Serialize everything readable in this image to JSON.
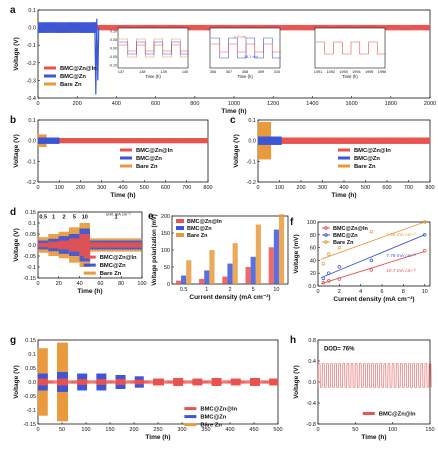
{
  "colors": {
    "bmc_in": "#e8524f",
    "bmc_zn": "#3b56d9",
    "bare": "#e99a3c",
    "axis": "#111111"
  },
  "chart_data": [
    {
      "id": "a",
      "type": "line",
      "panel_label": "a",
      "xlabel": "Time (h)",
      "ylabel": "Voltage (V)",
      "xlim": [
        0,
        2000
      ],
      "ylim": [
        -0.4,
        0.1
      ],
      "xticks": [
        0,
        200,
        400,
        600,
        800,
        1000,
        1200,
        1400,
        1600,
        1800,
        2000
      ],
      "yticks": [
        -0.4,
        -0.3,
        -0.2,
        -0.1,
        0.0,
        0.1
      ],
      "legend": [
        "BMC@Zn@In",
        "BMC@Zn",
        "Bare Zn"
      ],
      "series": [
        {
          "name": "BMC@Zn@In",
          "x_range": [
            0,
            2000
          ],
          "amplitude": 0.015
        },
        {
          "name": "BMC@Zn",
          "x_range": [
            0,
            300
          ],
          "amplitude": 0.03,
          "short_at": 300,
          "spike_min": -0.38
        },
        {
          "name": "Bare Zn",
          "x_range": [
            0,
            300
          ],
          "amplitude": 0.025
        }
      ],
      "insets": [
        {
          "xticks": [
            "137",
            "138",
            "139",
            "140"
          ],
          "yticks": [
            "0.10",
            "0.05",
            "0.00",
            "-0.05",
            "-0.10"
          ],
          "xlabel": "Time (h)"
        },
        {
          "xticks": [
            "306",
            "307",
            "308",
            "309",
            "310"
          ],
          "xlabel": "Time (h)",
          "annotations": [
            "< 9 mV",
            "18.1 mV"
          ]
        },
        {
          "xticks": [
            "1091",
            "1092",
            "1993",
            "1994",
            "1995",
            "1996"
          ],
          "xlabel": "Time (h)"
        }
      ]
    },
    {
      "id": "b",
      "type": "line",
      "panel_label": "b",
      "xlabel": "Time (h)",
      "ylabel": "Voltage (V)",
      "xlim": [
        0,
        800
      ],
      "ylim": [
        -0.2,
        0.1
      ],
      "xticks": [
        0,
        100,
        200,
        300,
        400,
        500,
        600,
        700,
        800
      ],
      "yticks": [
        -0.2,
        -0.1,
        0.0,
        0.1
      ],
      "legend": [
        "BMC@Zn@In",
        "BMC@Zn",
        "Bare Zn"
      ],
      "series": [
        {
          "name": "BMC@Zn@In",
          "x_range": [
            0,
            800
          ],
          "amplitude": 0.012
        },
        {
          "name": "BMC@Zn",
          "x_range": [
            0,
            100
          ],
          "amplitude": 0.015
        },
        {
          "name": "Bare Zn",
          "x_range": [
            0,
            40
          ],
          "amplitude": 0.03
        }
      ]
    },
    {
      "id": "c",
      "type": "line",
      "panel_label": "c",
      "xlabel": "Time (h)",
      "ylabel": "Voltage (V)",
      "xlim": [
        0,
        800
      ],
      "ylim": [
        -0.2,
        0.1
      ],
      "xticks": [
        0,
        100,
        200,
        300,
        400,
        500,
        600,
        700,
        800
      ],
      "yticks": [
        -0.2,
        -0.1,
        0.0,
        0.1
      ],
      "legend": [
        "BMC@Zn@In",
        "BMC@Zn",
        "Bare Zn"
      ],
      "series": [
        {
          "name": "BMC@Zn@In",
          "x_range": [
            0,
            800
          ],
          "amplitude": 0.015
        },
        {
          "name": "BMC@Zn",
          "x_range": [
            0,
            110
          ],
          "amplitude": 0.02
        },
        {
          "name": "Bare Zn",
          "x_range": [
            0,
            60
          ],
          "amplitude": 0.09
        }
      ]
    },
    {
      "id": "d",
      "type": "line",
      "panel_label": "d",
      "xlabel": "Time (h)",
      "ylabel": "Voltage (V)",
      "xlim": [
        0,
        100
      ],
      "ylim": [
        -0.15,
        0.15
      ],
      "xticks": [
        0,
        20,
        40,
        60,
        80,
        100
      ],
      "yticks": [
        -0.15,
        -0.1,
        -0.05,
        0.0,
        0.05,
        0.1,
        0.15
      ],
      "annotation": "Unit: mA cm⁻²",
      "rate_labels": [
        {
          "x": 5,
          "text": "0.5"
        },
        {
          "x": 15,
          "text": "1"
        },
        {
          "x": 25,
          "text": "2"
        },
        {
          "x": 35,
          "text": "5"
        },
        {
          "x": 45,
          "text": "10"
        },
        {
          "x": 75,
          "text": "1"
        }
      ],
      "segments": [
        {
          "x0": 0,
          "x1": 10,
          "amp": [
            0.01,
            0.02,
            0.035
          ]
        },
        {
          "x0": 10,
          "x1": 20,
          "amp": [
            0.015,
            0.028,
            0.05
          ]
        },
        {
          "x0": 20,
          "x1": 30,
          "amp": [
            0.02,
            0.04,
            0.06
          ]
        },
        {
          "x0": 30,
          "x1": 40,
          "amp": [
            0.03,
            0.05,
            0.08
          ]
        },
        {
          "x0": 40,
          "x1": 50,
          "amp": [
            0.05,
            0.075,
            0.1
          ]
        },
        {
          "x0": 50,
          "x1": 100,
          "amp": [
            0.012,
            0.02,
            0.03
          ]
        }
      ],
      "legend": [
        "BMC@Zn@In",
        "BMC@Zn",
        "Bare Zn"
      ]
    },
    {
      "id": "e",
      "type": "bar",
      "panel_label": "e",
      "xlabel": "Current density (mA cm⁻²)",
      "ylabel": "Voltage polarization (mV)",
      "ylim": [
        0,
        200
      ],
      "yticks": [
        0,
        50,
        100,
        150,
        200
      ],
      "categories": [
        "0.5",
        "1",
        "2",
        "5",
        "10"
      ],
      "series": [
        {
          "name": "BMC@Zn@In",
          "values": [
            10,
            15,
            22,
            50,
            108
          ]
        },
        {
          "name": "BMC@Zn",
          "values": [
            25,
            40,
            60,
            80,
            160
          ]
        },
        {
          "name": "Bare Zn",
          "values": [
            70,
            100,
            120,
            175,
            205
          ]
        }
      ]
    },
    {
      "id": "f",
      "type": "scatter",
      "panel_label": "f",
      "xlabel": "Current density (mA cm⁻²)",
      "ylabel": "Voltage (mV)",
      "xlim": [
        0,
        10.5
      ],
      "ylim": [
        0,
        100
      ],
      "xticks": [
        0,
        2,
        4,
        6,
        8,
        10
      ],
      "yticks": [
        0,
        20,
        40,
        60,
        80,
        100
      ],
      "x": [
        0.5,
        1,
        2,
        5,
        10
      ],
      "series": [
        {
          "name": "BMC@Zn@In",
          "values": [
            5,
            8,
            11,
            25,
            55
          ],
          "fit_slope_label": "10.7 mA cm⁻²"
        },
        {
          "name": "BMC@Zn",
          "values": [
            12,
            20,
            30,
            40,
            80
          ],
          "fit_slope_label": "7.76 mA cm⁻²"
        },
        {
          "name": "Bare Zn",
          "values": [
            35,
            50,
            60,
            85,
            102
          ],
          "fit_slope_label": "7.56 mA cm⁻²"
        }
      ],
      "fits": [
        {
          "name": "BMC@Zn@In",
          "intercept": 2,
          "slope": 5.2
        },
        {
          "name": "BMC@Zn",
          "intercept": 11,
          "slope": 6.9
        },
        {
          "name": "Bare Zn",
          "intercept": 40,
          "slope": 6.4
        }
      ]
    },
    {
      "id": "g",
      "type": "line",
      "panel_label": "g",
      "xlabel": "Time (h)",
      "ylabel": "Voltage (V)",
      "xlim": [
        0,
        500
      ],
      "ylim": [
        -0.15,
        0.15
      ],
      "xticks": [
        0,
        50,
        100,
        150,
        200,
        250,
        300,
        350,
        400,
        450,
        500
      ],
      "yticks": [
        -0.15,
        -0.1,
        -0.05,
        0.0,
        0.05,
        0.1,
        0.15
      ],
      "legend": [
        "BMC@Zn@In",
        "BMC@Zn",
        "Bare Zn"
      ],
      "blocks": [
        {
          "x0": 0,
          "x1": 20,
          "amp": [
            0.012,
            0.03,
            0.12
          ]
        },
        {
          "x0": 40,
          "x1": 62,
          "amp": [
            0.012,
            0.035,
            0.14
          ]
        },
        {
          "x0": 82,
          "x1": 102,
          "amp": [
            0.01,
            0.03,
            0
          ]
        },
        {
          "x0": 122,
          "x1": 142,
          "amp": [
            0.01,
            0.03,
            0
          ]
        },
        {
          "x0": 162,
          "x1": 182,
          "amp": [
            0.01,
            0.025,
            0
          ]
        },
        {
          "x0": 202,
          "x1": 220,
          "amp": [
            0.008,
            0.02,
            0
          ]
        },
        {
          "x0": 240,
          "x1": 262,
          "amp": [
            0.012,
            0,
            0
          ]
        },
        {
          "x0": 282,
          "x1": 302,
          "amp": [
            0.014,
            0,
            0
          ]
        },
        {
          "x0": 322,
          "x1": 342,
          "amp": [
            0.012,
            0,
            0
          ]
        },
        {
          "x0": 362,
          "x1": 382,
          "amp": [
            0.014,
            0,
            0
          ]
        },
        {
          "x0": 402,
          "x1": 422,
          "amp": [
            0.012,
            0,
            0
          ]
        },
        {
          "x0": 442,
          "x1": 462,
          "amp": [
            0.014,
            0,
            0
          ]
        },
        {
          "x0": 482,
          "x1": 500,
          "amp": [
            0.012,
            0,
            0
          ]
        }
      ]
    },
    {
      "id": "h",
      "type": "line",
      "panel_label": "h",
      "xlabel": "Time (h)",
      "ylabel": "Voltage (V)",
      "xlim": [
        0,
        150
      ],
      "ylim": [
        -0.8,
        0.8
      ],
      "xticks": [
        0,
        50,
        100,
        150
      ],
      "yticks": [
        -0.8,
        -0.4,
        0.0,
        0.4,
        0.8
      ],
      "annotation": "DOD= 76%",
      "legend": [
        "BMC@Zn@In"
      ],
      "period_h": 5.5,
      "high": 0.35,
      "low": -0.1
    }
  ]
}
